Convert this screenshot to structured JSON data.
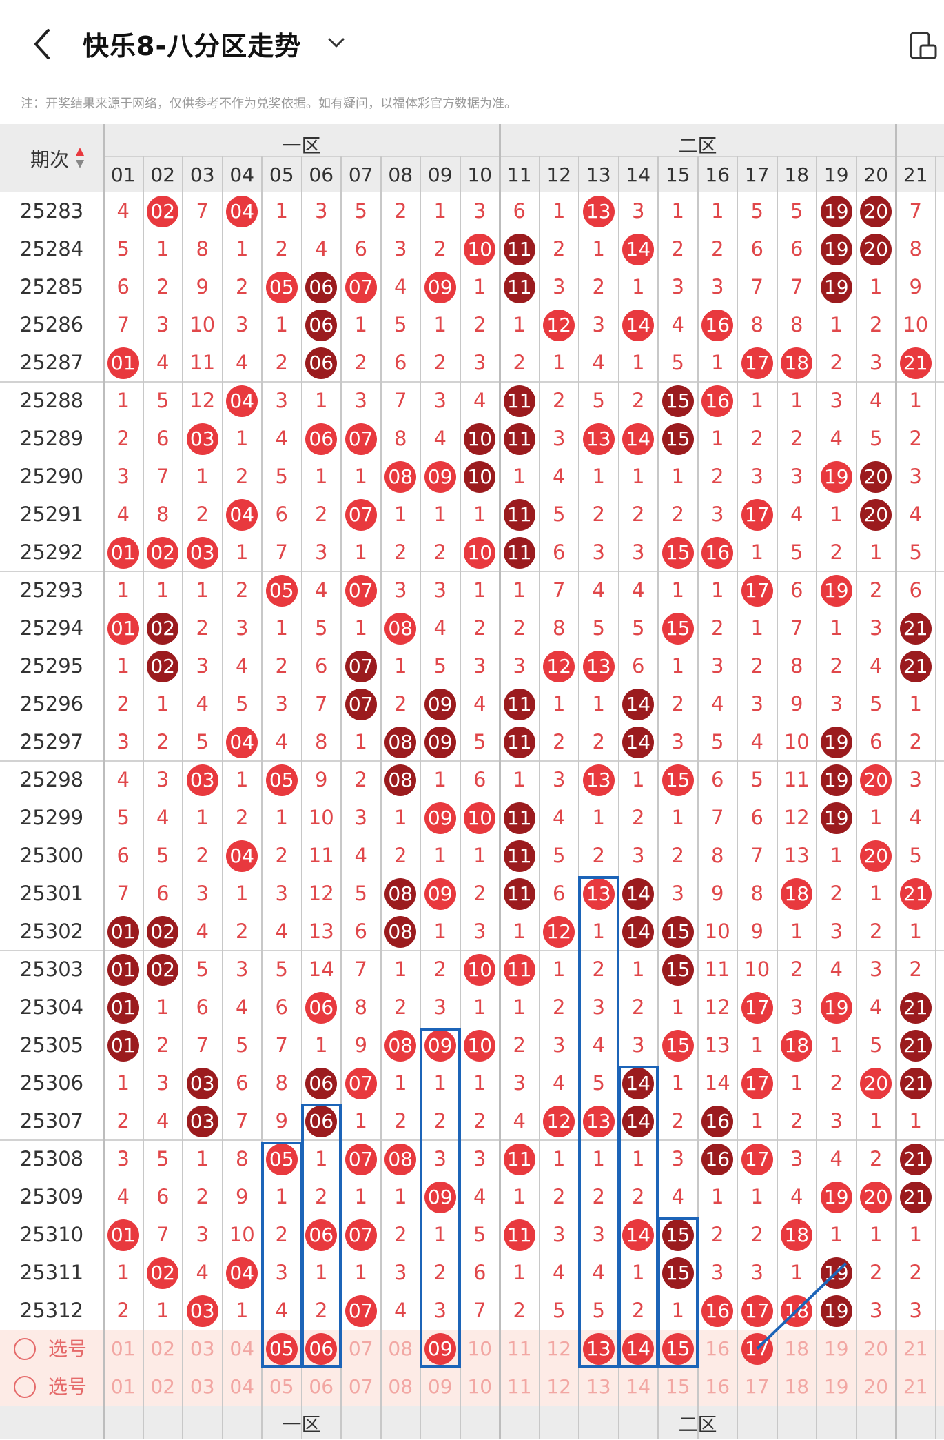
{
  "header": {
    "title": "快乐8-八分区走势"
  },
  "notice": "注：开奖结果来源于网络，仅供参考不作为兑奖依据。如有疑问，以福体彩官方数据为准。",
  "table": {
    "period_header": "期次",
    "zones": [
      "一区",
      "二区"
    ],
    "columns": [
      "01",
      "02",
      "03",
      "04",
      "05",
      "06",
      "07",
      "08",
      "09",
      "10",
      "11",
      "12",
      "13",
      "14",
      "15",
      "16",
      "17",
      "18",
      "19",
      "20",
      "21"
    ],
    "rows": [
      {
        "period": "25283",
        "values": [
          "4",
          "02",
          "7",
          "04",
          "1",
          "3",
          "5",
          "2",
          "1",
          "3",
          "6",
          "1",
          "13",
          "3",
          "1",
          "1",
          "5",
          "5",
          "19",
          "20",
          "7"
        ]
      },
      {
        "period": "25284",
        "values": [
          "5",
          "1",
          "8",
          "1",
          "2",
          "4",
          "6",
          "3",
          "2",
          "10",
          "11",
          "2",
          "1",
          "14",
          "2",
          "2",
          "6",
          "6",
          "19",
          "20",
          "8"
        ]
      },
      {
        "period": "25285",
        "values": [
          "6",
          "2",
          "9",
          "2",
          "05",
          "06",
          "07",
          "4",
          "09",
          "1",
          "11",
          "3",
          "2",
          "1",
          "3",
          "3",
          "7",
          "7",
          "19",
          "1",
          "9"
        ]
      },
      {
        "period": "25286",
        "values": [
          "7",
          "3",
          "10",
          "3",
          "1",
          "06",
          "1",
          "5",
          "1",
          "2",
          "1",
          "12",
          "3",
          "14",
          "4",
          "16",
          "8",
          "8",
          "1",
          "2",
          "10"
        ]
      },
      {
        "period": "25287",
        "values": [
          "01",
          "4",
          "11",
          "4",
          "2",
          "06",
          "2",
          "6",
          "2",
          "3",
          "2",
          "1",
          "4",
          "1",
          "5",
          "1",
          "17",
          "18",
          "2",
          "3",
          "21"
        ]
      },
      {
        "period": "25288",
        "values": [
          "1",
          "5",
          "12",
          "04",
          "3",
          "1",
          "3",
          "7",
          "3",
          "4",
          "11",
          "2",
          "5",
          "2",
          "15",
          "16",
          "1",
          "1",
          "3",
          "4",
          "1"
        ]
      },
      {
        "period": "25289",
        "values": [
          "2",
          "6",
          "03",
          "1",
          "4",
          "06",
          "07",
          "8",
          "4",
          "10",
          "11",
          "3",
          "13",
          "14",
          "15",
          "1",
          "2",
          "2",
          "4",
          "5",
          "2"
        ]
      },
      {
        "period": "25290",
        "values": [
          "3",
          "7",
          "1",
          "2",
          "5",
          "1",
          "1",
          "08",
          "09",
          "10",
          "1",
          "4",
          "1",
          "1",
          "1",
          "2",
          "3",
          "3",
          "19",
          "20",
          "3"
        ]
      },
      {
        "period": "25291",
        "values": [
          "4",
          "8",
          "2",
          "04",
          "6",
          "2",
          "07",
          "1",
          "1",
          "1",
          "11",
          "5",
          "2",
          "2",
          "2",
          "3",
          "17",
          "4",
          "1",
          "20",
          "4"
        ]
      },
      {
        "period": "25292",
        "values": [
          "01",
          "02",
          "03",
          "1",
          "7",
          "3",
          "1",
          "2",
          "2",
          "10",
          "11",
          "6",
          "3",
          "3",
          "15",
          "16",
          "1",
          "5",
          "2",
          "1",
          "5"
        ]
      },
      {
        "period": "25293",
        "values": [
          "1",
          "1",
          "1",
          "2",
          "05",
          "4",
          "07",
          "3",
          "3",
          "1",
          "1",
          "7",
          "4",
          "4",
          "1",
          "1",
          "17",
          "6",
          "19",
          "2",
          "6"
        ]
      },
      {
        "period": "25294",
        "values": [
          "01",
          "02",
          "2",
          "3",
          "1",
          "5",
          "1",
          "08",
          "4",
          "2",
          "2",
          "8",
          "5",
          "5",
          "15",
          "2",
          "1",
          "7",
          "1",
          "3",
          "21"
        ]
      },
      {
        "period": "25295",
        "values": [
          "1",
          "02",
          "3",
          "4",
          "2",
          "6",
          "07",
          "1",
          "5",
          "3",
          "3",
          "12",
          "13",
          "6",
          "1",
          "3",
          "2",
          "8",
          "2",
          "4",
          "21"
        ]
      },
      {
        "period": "25296",
        "values": [
          "2",
          "1",
          "4",
          "5",
          "3",
          "7",
          "07",
          "2",
          "09",
          "4",
          "11",
          "1",
          "1",
          "14",
          "2",
          "4",
          "3",
          "9",
          "3",
          "5",
          "1"
        ]
      },
      {
        "period": "25297",
        "values": [
          "3",
          "2",
          "5",
          "04",
          "4",
          "8",
          "1",
          "08",
          "09",
          "5",
          "11",
          "2",
          "2",
          "14",
          "3",
          "5",
          "4",
          "10",
          "19",
          "6",
          "2"
        ]
      },
      {
        "period": "25298",
        "values": [
          "4",
          "3",
          "03",
          "1",
          "05",
          "9",
          "2",
          "08",
          "1",
          "6",
          "1",
          "3",
          "13",
          "1",
          "15",
          "6",
          "5",
          "11",
          "19",
          "20",
          "3"
        ]
      },
      {
        "period": "25299",
        "values": [
          "5",
          "4",
          "1",
          "2",
          "1",
          "10",
          "3",
          "1",
          "09",
          "10",
          "11",
          "4",
          "1",
          "2",
          "1",
          "7",
          "6",
          "12",
          "19",
          "1",
          "4"
        ]
      },
      {
        "period": "25300",
        "values": [
          "6",
          "5",
          "2",
          "04",
          "2",
          "11",
          "4",
          "2",
          "1",
          "1",
          "11",
          "5",
          "2",
          "3",
          "2",
          "8",
          "7",
          "13",
          "1",
          "20",
          "5"
        ]
      },
      {
        "period": "25301",
        "values": [
          "7",
          "6",
          "3",
          "1",
          "3",
          "12",
          "5",
          "08",
          "09",
          "2",
          "11",
          "6",
          "13",
          "14",
          "3",
          "9",
          "8",
          "18",
          "2",
          "1",
          "21"
        ]
      },
      {
        "period": "25302",
        "values": [
          "01",
          "02",
          "4",
          "2",
          "4",
          "13",
          "6",
          "08",
          "1",
          "3",
          "1",
          "12",
          "1",
          "14",
          "15",
          "10",
          "9",
          "1",
          "3",
          "2",
          "1"
        ]
      },
      {
        "period": "25303",
        "values": [
          "01",
          "02",
          "5",
          "3",
          "5",
          "14",
          "7",
          "1",
          "2",
          "10",
          "11",
          "1",
          "2",
          "1",
          "15",
          "11",
          "10",
          "2",
          "4",
          "3",
          "2"
        ]
      },
      {
        "period": "25304",
        "values": [
          "01",
          "1",
          "6",
          "4",
          "6",
          "06",
          "8",
          "2",
          "3",
          "1",
          "1",
          "2",
          "3",
          "2",
          "1",
          "12",
          "17",
          "3",
          "19",
          "4",
          "21"
        ]
      },
      {
        "period": "25305",
        "values": [
          "01",
          "2",
          "7",
          "5",
          "7",
          "1",
          "9",
          "08",
          "09",
          "10",
          "2",
          "3",
          "4",
          "3",
          "15",
          "13",
          "1",
          "18",
          "1",
          "5",
          "21"
        ]
      },
      {
        "period": "25306",
        "values": [
          "1",
          "3",
          "03",
          "6",
          "8",
          "06",
          "07",
          "1",
          "1",
          "1",
          "3",
          "4",
          "5",
          "14",
          "1",
          "14",
          "17",
          "1",
          "2",
          "20",
          "21"
        ]
      },
      {
        "period": "25307",
        "values": [
          "2",
          "4",
          "03",
          "7",
          "9",
          "06",
          "1",
          "2",
          "2",
          "2",
          "4",
          "12",
          "13",
          "14",
          "2",
          "16",
          "1",
          "2",
          "3",
          "1",
          "1"
        ]
      },
      {
        "period": "25308",
        "values": [
          "3",
          "5",
          "1",
          "8",
          "05",
          "1",
          "07",
          "08",
          "3",
          "3",
          "11",
          "1",
          "1",
          "1",
          "3",
          "16",
          "17",
          "3",
          "4",
          "2",
          "21"
        ]
      },
      {
        "period": "25309",
        "values": [
          "4",
          "6",
          "2",
          "9",
          "1",
          "2",
          "1",
          "1",
          "09",
          "4",
          "1",
          "2",
          "2",
          "2",
          "4",
          "1",
          "1",
          "4",
          "19",
          "20",
          "21"
        ]
      },
      {
        "period": "25310",
        "values": [
          "01",
          "7",
          "3",
          "10",
          "2",
          "06",
          "07",
          "2",
          "1",
          "5",
          "11",
          "3",
          "3",
          "14",
          "15",
          "2",
          "2",
          "18",
          "1",
          "1",
          "1"
        ]
      },
      {
        "period": "25311",
        "values": [
          "1",
          "02",
          "4",
          "04",
          "3",
          "1",
          "1",
          "3",
          "2",
          "6",
          "1",
          "4",
          "4",
          "1",
          "15",
          "3",
          "3",
          "1",
          "19",
          "2",
          "2"
        ]
      },
      {
        "period": "25312",
        "values": [
          "2",
          "1",
          "03",
          "1",
          "4",
          "2",
          "07",
          "4",
          "3",
          "7",
          "2",
          "5",
          "5",
          "2",
          "1",
          "16",
          "17",
          "18",
          "19",
          "3",
          "3"
        ]
      }
    ],
    "select_rows": [
      {
        "label": "选号",
        "selected": [
          "05",
          "06",
          "09",
          "13",
          "14",
          "15",
          "17"
        ]
      },
      {
        "label": "选号",
        "selected": []
      }
    ]
  }
}
